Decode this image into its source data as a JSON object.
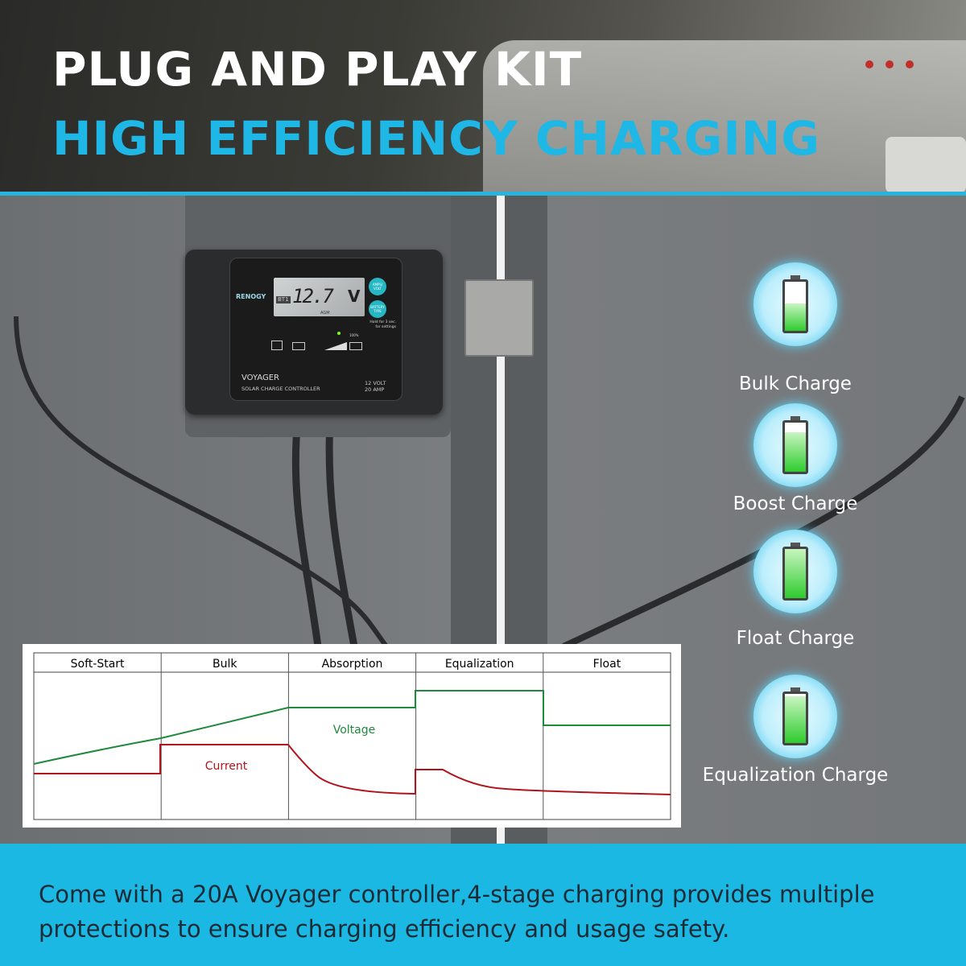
{
  "headline": {
    "line1": "PLUG AND PLAY KIT",
    "line2": "HIGH EFFICIENCY CHARGING"
  },
  "controller": {
    "brand": "RENOGY",
    "lcd_value": "12.7",
    "lcd_unit": "V",
    "lcd_battery_label": "BT1",
    "lcd_mode": "AGM",
    "button_1": "AMPS/ VOLT",
    "button_2": "BATTERY TYPE",
    "hold_note": "Hold for 3 sec. for settings",
    "charge_percent_label": "100%",
    "name": "VOYAGER",
    "subtitle": "SOLAR CHARGE CONTROLLER",
    "voltage_spec": "12 VOLT",
    "amp_spec": "20 AMP"
  },
  "chart_data": {
    "type": "line",
    "categories": [
      "Soft-Start",
      "Bulk",
      "Absorption",
      "Equalization",
      "Float"
    ],
    "series": [
      {
        "name": "Voltage",
        "color": "#1f8a3c"
      },
      {
        "name": "Current",
        "color": "#b0141c"
      }
    ]
  },
  "stages": [
    {
      "label": "Bulk Charge",
      "fill_level": 0.55
    },
    {
      "label": "Boost Charge",
      "fill_level": 0.8
    },
    {
      "label": "Float Charge",
      "fill_level": 1.0
    },
    {
      "label": "Equalization Charge",
      "fill_level": 0.95
    }
  ],
  "description": "Come with a 20A Voyager controller,4-stage charging provides multiple protections to ensure charging efficiency and usage safety.",
  "colors": {
    "accent": "#1cb8e4",
    "headline_blue": "#1fb8e6",
    "battery_green": "#2ecc2e"
  }
}
